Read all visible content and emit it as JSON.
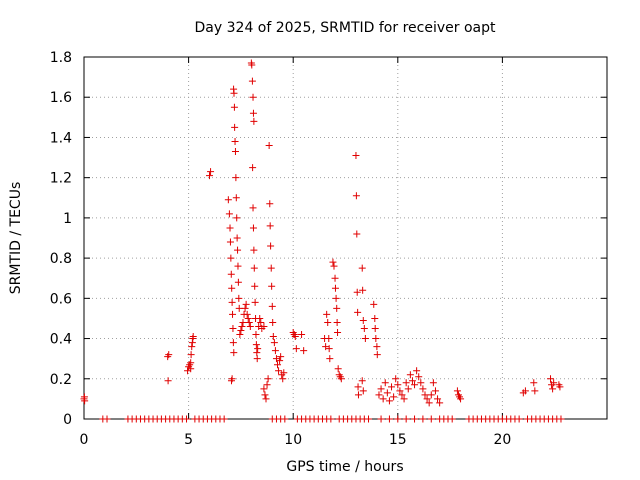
{
  "chart_data": {
    "type": "scatter",
    "title": "Day 324 of 2025, SRMTID for receiver oapt",
    "xlabel": "GPS time / hours",
    "ylabel": "SRMTID / TECUs",
    "xlim": [
      0,
      25
    ],
    "ylim": [
      0,
      1.8
    ],
    "xticks": [
      0,
      5,
      10,
      15,
      20
    ],
    "yticks": [
      0,
      0.2,
      0.4,
      0.6,
      0.8,
      1.0,
      1.2,
      1.4,
      1.6,
      1.8
    ],
    "ytick_labels": [
      "0",
      "0.2",
      "0.4",
      "0.6",
      "0.8",
      "1",
      "1.2",
      "1.4",
      "1.6",
      "1.8"
    ],
    "grid": true,
    "marker": "+",
    "color": "#e00000",
    "series": [
      {
        "name": "SRMTID",
        "points": [
          [
            0.0,
            0.1
          ],
          [
            0.02,
            0.11
          ],
          [
            0.03,
            0.09
          ],
          [
            0.9,
            0.0
          ],
          [
            1.1,
            0.0
          ],
          [
            2.1,
            0.0
          ],
          [
            2.3,
            0.0
          ],
          [
            2.5,
            0.0
          ],
          [
            2.7,
            0.0
          ],
          [
            2.9,
            0.0
          ],
          [
            3.1,
            0.0
          ],
          [
            3.3,
            0.0
          ],
          [
            3.5,
            0.0
          ],
          [
            3.7,
            0.0
          ],
          [
            3.9,
            0.0
          ],
          [
            4.1,
            0.0
          ],
          [
            4.3,
            0.0
          ],
          [
            4.5,
            0.0
          ],
          [
            4.7,
            0.0
          ],
          [
            4.9,
            0.0
          ],
          [
            4.0,
            0.31
          ],
          [
            4.05,
            0.32
          ],
          [
            4.02,
            0.19
          ],
          [
            4.95,
            0.24
          ],
          [
            5.0,
            0.26
          ],
          [
            5.05,
            0.27
          ],
          [
            5.1,
            0.25
          ],
          [
            5.1,
            0.28
          ],
          [
            5.12,
            0.32
          ],
          [
            5.15,
            0.36
          ],
          [
            5.18,
            0.38
          ],
          [
            5.2,
            0.4
          ],
          [
            5.22,
            0.41
          ],
          [
            5.3,
            0.0
          ],
          [
            5.5,
            0.0
          ],
          [
            5.7,
            0.0
          ],
          [
            5.9,
            0.0
          ],
          [
            6.0,
            1.21
          ],
          [
            6.05,
            1.23
          ],
          [
            6.1,
            0.0
          ],
          [
            6.3,
            0.0
          ],
          [
            6.5,
            0.0
          ],
          [
            6.7,
            0.0
          ],
          [
            6.9,
            1.09
          ],
          [
            6.95,
            1.02
          ],
          [
            6.98,
            0.95
          ],
          [
            7.0,
            0.88
          ],
          [
            7.02,
            0.8
          ],
          [
            7.04,
            0.72
          ],
          [
            7.06,
            0.65
          ],
          [
            7.08,
            0.58
          ],
          [
            7.1,
            0.52
          ],
          [
            7.12,
            0.45
          ],
          [
            7.14,
            0.38
          ],
          [
            7.16,
            0.33
          ],
          [
            7.05,
            0.19
          ],
          [
            7.08,
            0.2
          ],
          [
            7.15,
            1.64
          ],
          [
            7.17,
            1.62
          ],
          [
            7.19,
            1.55
          ],
          [
            7.2,
            1.45
          ],
          [
            7.22,
            1.38
          ],
          [
            7.24,
            1.33
          ],
          [
            7.26,
            1.2
          ],
          [
            7.28,
            1.1
          ],
          [
            7.3,
            1.0
          ],
          [
            7.32,
            0.9
          ],
          [
            7.34,
            0.84
          ],
          [
            7.36,
            0.76
          ],
          [
            7.38,
            0.68
          ],
          [
            7.4,
            0.6
          ],
          [
            7.42,
            0.55
          ],
          [
            7.45,
            0.42
          ],
          [
            7.5,
            0.44
          ],
          [
            7.55,
            0.46
          ],
          [
            7.6,
            0.48
          ],
          [
            7.65,
            0.52
          ],
          [
            7.7,
            0.55
          ],
          [
            7.75,
            0.57
          ],
          [
            7.8,
            0.52
          ],
          [
            7.85,
            0.5
          ],
          [
            7.9,
            0.48
          ],
          [
            7.95,
            0.46
          ],
          [
            8.0,
            1.77
          ],
          [
            8.02,
            1.76
          ],
          [
            8.05,
            1.68
          ],
          [
            8.08,
            1.6
          ],
          [
            8.1,
            1.52
          ],
          [
            8.12,
            1.48
          ],
          [
            8.06,
            1.25
          ],
          [
            8.08,
            1.05
          ],
          [
            8.1,
            0.95
          ],
          [
            8.12,
            0.84
          ],
          [
            8.14,
            0.75
          ],
          [
            8.16,
            0.66
          ],
          [
            8.18,
            0.58
          ],
          [
            8.2,
            0.5
          ],
          [
            8.22,
            0.42
          ],
          [
            8.24,
            0.37
          ],
          [
            8.26,
            0.33
          ],
          [
            8.28,
            0.3
          ],
          [
            8.3,
            0.35
          ],
          [
            8.35,
            0.46
          ],
          [
            8.4,
            0.5
          ],
          [
            8.45,
            0.48
          ],
          [
            8.5,
            0.45
          ],
          [
            8.6,
            0.46
          ],
          [
            8.6,
            0.15
          ],
          [
            8.65,
            0.12
          ],
          [
            8.7,
            0.1
          ],
          [
            8.75,
            0.17
          ],
          [
            8.8,
            0.2
          ],
          [
            8.85,
            1.36
          ],
          [
            8.88,
            1.07
          ],
          [
            8.9,
            0.96
          ],
          [
            8.92,
            0.86
          ],
          [
            8.95,
            0.75
          ],
          [
            8.97,
            0.66
          ],
          [
            9.0,
            0.56
          ],
          [
            9.02,
            0.48
          ],
          [
            9.05,
            0.41
          ],
          [
            9.1,
            0.38
          ],
          [
            9.15,
            0.34
          ],
          [
            9.2,
            0.3
          ],
          [
            9.25,
            0.27
          ],
          [
            9.3,
            0.24
          ],
          [
            9.35,
            0.29
          ],
          [
            9.4,
            0.31
          ],
          [
            9.45,
            0.22
          ],
          [
            9.5,
            0.2
          ],
          [
            9.55,
            0.23
          ],
          [
            9.0,
            0.0
          ],
          [
            9.2,
            0.0
          ],
          [
            9.4,
            0.0
          ],
          [
            9.6,
            0.0
          ],
          [
            10.0,
            0.43
          ],
          [
            10.05,
            0.42
          ],
          [
            10.1,
            0.41
          ],
          [
            10.15,
            0.35
          ],
          [
            10.4,
            0.42
          ],
          [
            10.5,
            0.34
          ],
          [
            10.2,
            0.0
          ],
          [
            10.4,
            0.0
          ],
          [
            10.6,
            0.0
          ],
          [
            10.8,
            0.0
          ],
          [
            11.0,
            0.0
          ],
          [
            11.2,
            0.0
          ],
          [
            11.4,
            0.0
          ],
          [
            11.5,
            0.4
          ],
          [
            11.55,
            0.36
          ],
          [
            11.6,
            0.0
          ],
          [
            11.8,
            0.0
          ],
          [
            11.6,
            0.52
          ],
          [
            11.65,
            0.48
          ],
          [
            11.7,
            0.4
          ],
          [
            11.72,
            0.35
          ],
          [
            11.75,
            0.3
          ],
          [
            11.9,
            0.78
          ],
          [
            11.95,
            0.76
          ],
          [
            12.0,
            0.7
          ],
          [
            12.02,
            0.65
          ],
          [
            12.05,
            0.6
          ],
          [
            12.08,
            0.55
          ],
          [
            12.1,
            0.48
          ],
          [
            12.12,
            0.43
          ],
          [
            12.15,
            0.25
          ],
          [
            12.2,
            0.22
          ],
          [
            12.25,
            0.21
          ],
          [
            12.3,
            0.2
          ],
          [
            12.2,
            0.0
          ],
          [
            12.4,
            0.0
          ],
          [
            12.6,
            0.0
          ],
          [
            12.8,
            0.0
          ],
          [
            13.0,
            1.31
          ],
          [
            13.02,
            1.11
          ],
          [
            13.04,
            0.92
          ],
          [
            13.06,
            0.63
          ],
          [
            13.08,
            0.53
          ],
          [
            13.1,
            0.16
          ],
          [
            13.12,
            0.12
          ],
          [
            13.3,
            0.75
          ],
          [
            13.32,
            0.64
          ],
          [
            13.35,
            0.49
          ],
          [
            13.4,
            0.45
          ],
          [
            13.45,
            0.4
          ],
          [
            13.3,
            0.19
          ],
          [
            13.35,
            0.14
          ],
          [
            13.0,
            0.0
          ],
          [
            13.2,
            0.0
          ],
          [
            13.4,
            0.0
          ],
          [
            13.6,
            0.0
          ],
          [
            13.85,
            0.57
          ],
          [
            13.9,
            0.5
          ],
          [
            13.92,
            0.45
          ],
          [
            13.95,
            0.4
          ],
          [
            14.0,
            0.36
          ],
          [
            14.02,
            0.32
          ],
          [
            14.1,
            0.12
          ],
          [
            14.2,
            0.15
          ],
          [
            14.3,
            0.1
          ],
          [
            14.4,
            0.18
          ],
          [
            14.5,
            0.13
          ],
          [
            14.6,
            0.09
          ],
          [
            14.7,
            0.16
          ],
          [
            14.8,
            0.11
          ],
          [
            14.9,
            0.2
          ],
          [
            15.0,
            0.17
          ],
          [
            15.1,
            0.14
          ],
          [
            15.2,
            0.12
          ],
          [
            15.3,
            0.1
          ],
          [
            15.4,
            0.18
          ],
          [
            15.5,
            0.15
          ],
          [
            15.6,
            0.22
          ],
          [
            15.7,
            0.19
          ],
          [
            15.8,
            0.17
          ],
          [
            15.9,
            0.24
          ],
          [
            16.0,
            0.21
          ],
          [
            16.1,
            0.18
          ],
          [
            16.2,
            0.15
          ],
          [
            16.3,
            0.12
          ],
          [
            16.4,
            0.1
          ],
          [
            16.5,
            0.08
          ],
          [
            16.6,
            0.12
          ],
          [
            16.7,
            0.18
          ],
          [
            16.8,
            0.14
          ],
          [
            16.9,
            0.1
          ],
          [
            17.0,
            0.08
          ],
          [
            14.2,
            0.0
          ],
          [
            14.6,
            0.0
          ],
          [
            15.0,
            0.0
          ],
          [
            15.4,
            0.0
          ],
          [
            15.8,
            0.0
          ],
          [
            16.2,
            0.0
          ],
          [
            16.6,
            0.0
          ],
          [
            17.0,
            0.0
          ],
          [
            17.2,
            0.0
          ],
          [
            17.4,
            0.0
          ],
          [
            17.6,
            0.0
          ],
          [
            17.85,
            0.14
          ],
          [
            17.9,
            0.12
          ],
          [
            17.95,
            0.11
          ],
          [
            18.0,
            0.1
          ],
          [
            18.4,
            0.0
          ],
          [
            18.6,
            0.0
          ],
          [
            18.8,
            0.0
          ],
          [
            19.0,
            0.0
          ],
          [
            19.2,
            0.0
          ],
          [
            19.4,
            0.0
          ],
          [
            19.6,
            0.0
          ],
          [
            19.8,
            0.0
          ],
          [
            20.0,
            0.0
          ],
          [
            20.2,
            0.0
          ],
          [
            20.4,
            0.0
          ],
          [
            20.6,
            0.0
          ],
          [
            20.8,
            0.0
          ],
          [
            21.0,
            0.13
          ],
          [
            21.1,
            0.14
          ],
          [
            21.5,
            0.18
          ],
          [
            21.55,
            0.14
          ],
          [
            21.2,
            0.0
          ],
          [
            21.4,
            0.0
          ],
          [
            21.6,
            0.0
          ],
          [
            21.8,
            0.0
          ],
          [
            22.0,
            0.0
          ],
          [
            22.2,
            0.0
          ],
          [
            22.3,
            0.2
          ],
          [
            22.35,
            0.17
          ],
          [
            22.4,
            0.15
          ],
          [
            22.45,
            0.18
          ],
          [
            22.7,
            0.17
          ],
          [
            22.75,
            0.16
          ],
          [
            22.4,
            0.0
          ],
          [
            22.6,
            0.0
          ],
          [
            22.8,
            0.0
          ]
        ]
      }
    ]
  }
}
